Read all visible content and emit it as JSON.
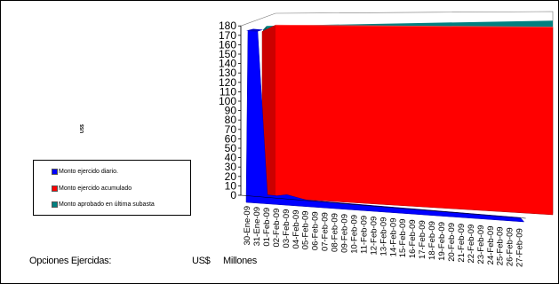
{
  "colors": {
    "daily": "#0000ff",
    "accumulated": "#ff0000",
    "approved": "#008080",
    "wall": "#ffffff"
  },
  "legend": {
    "daily": "Monto ejercido diario.",
    "accumulated": "Monto ejercido acumulado",
    "approved": "Monto aprobado en última subasta"
  },
  "footer": {
    "label": "Opciones Ejercidas:",
    "currency": "US$",
    "unit": "Millones"
  },
  "chart_data": {
    "type": "area",
    "title": "",
    "xlabel": "",
    "ylabel": "US$",
    "ylim": [
      0,
      180
    ],
    "yticks": [
      0,
      10,
      20,
      30,
      40,
      50,
      60,
      70,
      80,
      90,
      100,
      110,
      120,
      130,
      140,
      150,
      160,
      170,
      180
    ],
    "legend_position": "left",
    "categories": [
      "30-Ene-09",
      "31-Ene-09",
      "01-Feb-09",
      "02-Feb-09",
      "03-Feb-09",
      "04-Feb-09",
      "05-Feb-09",
      "06-Feb-09",
      "07-Feb-09",
      "08-Feb-09",
      "09-Feb-09",
      "10-Feb-09",
      "11-Feb-09",
      "12-Feb-09",
      "13-Feb-09",
      "14-Feb-09",
      "15-Feb-09",
      "16-Feb-09",
      "17-Feb-09",
      "18-Feb-09",
      "19-Feb-09",
      "20-Feb-09",
      "21-Feb-09",
      "22-Feb-09",
      "23-Feb-09",
      "24-Feb-09",
      "25-Feb-09",
      "26-Feb-09",
      "27-Feb-09"
    ],
    "series": [
      {
        "name": "Monto ejercido diario.",
        "values": [
          175,
          175,
          2,
          2,
          4,
          2,
          0,
          0,
          0,
          0,
          0,
          0,
          0,
          0,
          0,
          0,
          0,
          0,
          0,
          0,
          0,
          0,
          0,
          0,
          0,
          0,
          0,
          0,
          0
        ]
      },
      {
        "name": "Monto ejercido acumulado",
        "values": [
          175,
          177,
          179,
          181,
          185,
          187,
          187,
          187,
          187,
          187,
          187,
          187,
          187,
          187,
          187,
          187,
          187,
          187,
          187,
          187,
          187,
          187,
          187,
          187,
          187,
          187,
          187,
          187,
          187
        ]
      },
      {
        "name": "Monto aprobado en última subasta",
        "values": [
          200,
          200,
          200,
          200,
          200,
          200,
          200,
          200,
          200,
          200,
          200,
          200,
          200,
          200,
          200,
          200,
          200,
          200,
          200,
          200,
          200,
          200,
          200,
          200,
          200,
          200,
          200,
          200,
          200
        ]
      }
    ]
  }
}
